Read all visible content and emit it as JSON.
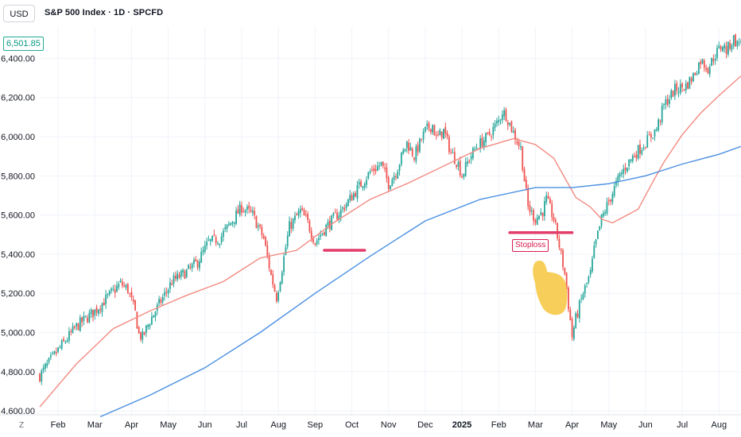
{
  "header": {
    "currency": "USD",
    "title": "S&P 500 Index · 1D · SPCFD",
    "last_price": "6,501.85",
    "reset_label": "Z"
  },
  "colors": {
    "up": "#26a69a",
    "down": "#ef5350",
    "ma_short": "#f28b82",
    "ma_long": "#4a90e2",
    "annotation": "#e23c6a",
    "hand": "#f7c948"
  },
  "annotations": {
    "stoploss_text": "Stoploss",
    "hand_icon": "pointing-hand-icon"
  },
  "chart_data": {
    "type": "line",
    "title": "S&P 500 Index · 1D · SPCFD",
    "xlabel": "",
    "ylabel": "",
    "ylim": [
      4580,
      6560
    ],
    "y_ticks": [
      "6,400.00",
      "6,200.00",
      "6,000.00",
      "5,800.00",
      "5,600.00",
      "5,400.00",
      "5,200.00",
      "5,000.00",
      "4,800.00",
      "4,600.00"
    ],
    "y_tick_values": [
      6400,
      6200,
      6000,
      5800,
      5600,
      5400,
      5200,
      5000,
      4800,
      4600
    ],
    "x_ticks": [
      "Feb",
      "Mar",
      "Apr",
      "May",
      "Jun",
      "Jul",
      "Aug",
      "Sep",
      "Oct",
      "Nov",
      "Dec",
      "2025",
      "Feb",
      "Mar",
      "Apr",
      "May",
      "Jun",
      "Jul",
      "Aug"
    ],
    "x_tick_indices": [
      10,
      30,
      50,
      70,
      90,
      110,
      130,
      150,
      170,
      190,
      210,
      230,
      250,
      270,
      290,
      310,
      330,
      350,
      370
    ],
    "grid": true,
    "series": [
      {
        "kind": "price",
        "points": [
          [
            0,
            4780
          ],
          [
            10,
            4910
          ],
          [
            20,
            5030
          ],
          [
            30,
            5110
          ],
          [
            38,
            5190
          ],
          [
            44,
            5250
          ],
          [
            48,
            5220
          ],
          [
            52,
            5100
          ],
          [
            54,
            4990
          ],
          [
            56,
            4975
          ],
          [
            60,
            5060
          ],
          [
            66,
            5160
          ],
          [
            72,
            5260
          ],
          [
            80,
            5310
          ],
          [
            86,
            5360
          ],
          [
            92,
            5460
          ],
          [
            98,
            5480
          ],
          [
            104,
            5560
          ],
          [
            110,
            5640
          ],
          [
            116,
            5600
          ],
          [
            118,
            5560
          ],
          [
            122,
            5480
          ],
          [
            126,
            5290
          ],
          [
            129,
            5180
          ],
          [
            132,
            5330
          ],
          [
            136,
            5540
          ],
          [
            142,
            5620
          ],
          [
            146,
            5560
          ],
          [
            150,
            5460
          ],
          [
            156,
            5540
          ],
          [
            164,
            5620
          ],
          [
            172,
            5720
          ],
          [
            180,
            5820
          ],
          [
            186,
            5860
          ],
          [
            190,
            5760
          ],
          [
            194,
            5820
          ],
          [
            200,
            5970
          ],
          [
            204,
            5900
          ],
          [
            210,
            6030
          ],
          [
            214,
            6060
          ],
          [
            216,
            5990
          ],
          [
            220,
            6030
          ],
          [
            224,
            5920
          ],
          [
            228,
            5860
          ],
          [
            230,
            5800
          ],
          [
            234,
            5890
          ],
          [
            238,
            5950
          ],
          [
            244,
            6000
          ],
          [
            250,
            6080
          ],
          [
            252,
            6130
          ],
          [
            254,
            6110
          ],
          [
            258,
            6020
          ],
          [
            262,
            5940
          ],
          [
            264,
            5780
          ],
          [
            266,
            5640
          ],
          [
            270,
            5580
          ],
          [
            274,
            5620
          ],
          [
            276,
            5680
          ],
          [
            280,
            5580
          ],
          [
            282,
            5490
          ],
          [
            286,
            5300
          ],
          [
            288,
            5140
          ],
          [
            290,
            4980
          ],
          [
            292,
            5070
          ],
          [
            296,
            5200
          ],
          [
            300,
            5300
          ],
          [
            302,
            5420
          ],
          [
            306,
            5580
          ],
          [
            310,
            5670
          ],
          [
            316,
            5800
          ],
          [
            320,
            5860
          ],
          [
            324,
            5910
          ],
          [
            330,
            5970
          ],
          [
            336,
            6040
          ],
          [
            340,
            6160
          ],
          [
            346,
            6240
          ],
          [
            352,
            6260
          ],
          [
            356,
            6310
          ],
          [
            360,
            6390
          ],
          [
            364,
            6350
          ],
          [
            368,
            6420
          ],
          [
            372,
            6470
          ],
          [
            374,
            6440
          ],
          [
            378,
            6500
          ],
          [
            380,
            6470
          ],
          [
            382,
            6500
          ]
        ]
      },
      {
        "kind": "ma_short",
        "points": [
          [
            0,
            4620
          ],
          [
            20,
            4840
          ],
          [
            40,
            5020
          ],
          [
            60,
            5110
          ],
          [
            80,
            5190
          ],
          [
            100,
            5260
          ],
          [
            120,
            5380
          ],
          [
            140,
            5420
          ],
          [
            160,
            5560
          ],
          [
            180,
            5680
          ],
          [
            200,
            5760
          ],
          [
            220,
            5850
          ],
          [
            240,
            5940
          ],
          [
            258,
            5990
          ],
          [
            270,
            5960
          ],
          [
            280,
            5890
          ],
          [
            292,
            5690
          ],
          [
            300,
            5640
          ],
          [
            306,
            5580
          ],
          [
            312,
            5560
          ],
          [
            318,
            5590
          ],
          [
            326,
            5630
          ],
          [
            334,
            5770
          ],
          [
            340,
            5870
          ],
          [
            350,
            6010
          ],
          [
            360,
            6120
          ],
          [
            370,
            6210
          ],
          [
            382,
            6310
          ]
        ]
      },
      {
        "kind": "ma_long",
        "points": [
          [
            33,
            4570
          ],
          [
            60,
            4680
          ],
          [
            90,
            4820
          ],
          [
            120,
            5000
          ],
          [
            150,
            5200
          ],
          [
            180,
            5390
          ],
          [
            210,
            5570
          ],
          [
            240,
            5680
          ],
          [
            270,
            5740
          ],
          [
            290,
            5740
          ],
          [
            310,
            5760
          ],
          [
            330,
            5800
          ],
          [
            350,
            5860
          ],
          [
            370,
            5910
          ],
          [
            382,
            5950
          ]
        ]
      }
    ],
    "levels": [
      {
        "value": 5420,
        "x_start": 155,
        "x_end": 177
      },
      {
        "value": 5510,
        "x_start": 256,
        "x_end": 290,
        "label": "Stoploss"
      }
    ]
  }
}
